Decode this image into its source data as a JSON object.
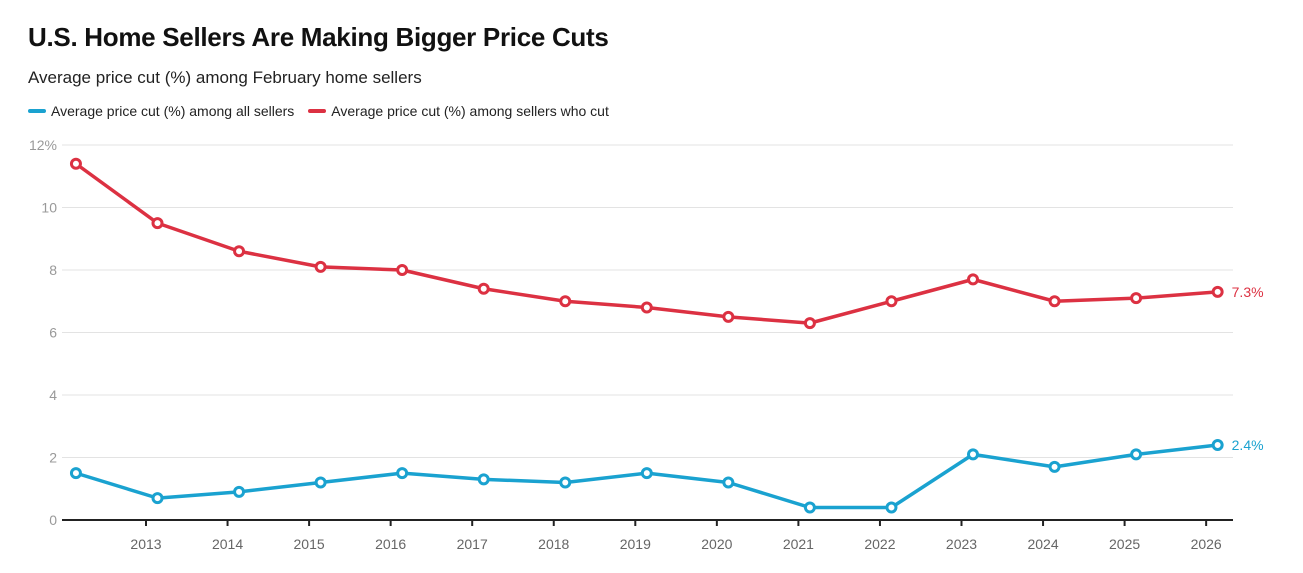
{
  "chart_data": {
    "type": "line",
    "title": "U.S. Home Sellers Are Making Bigger Price Cuts",
    "subtitle": "Average price cut (%) among February home sellers",
    "x": [
      2012,
      2013,
      2014,
      2015,
      2016,
      2017,
      2018,
      2019,
      2020,
      2021,
      2022,
      2023,
      2024,
      2025,
      2026
    ],
    "x_ticks": [
      "2013",
      "2014",
      "2015",
      "2016",
      "2017",
      "2018",
      "2019",
      "2020",
      "2021",
      "2022",
      "2023",
      "2024",
      "2025",
      "2026"
    ],
    "y_ticks": [
      "0",
      "2",
      "4",
      "6",
      "8",
      "10",
      "12%"
    ],
    "ylim": [
      0,
      12
    ],
    "grid": "horizontal",
    "legend_placement": "top-left",
    "series": [
      {
        "name": "Average price cut (%) among all sellers",
        "color": "#1aa2d0",
        "values": [
          1.5,
          0.7,
          0.9,
          1.2,
          1.5,
          1.3,
          1.2,
          1.5,
          1.2,
          0.4,
          0.4,
          2.1,
          1.7,
          2.1,
          2.4
        ],
        "end_label": "2.4%"
      },
      {
        "name": "Average price cut (%) among sellers who cut",
        "color": "#dc3142",
        "values": [
          11.4,
          9.5,
          8.6,
          8.1,
          8.0,
          7.4,
          7.0,
          6.8,
          6.5,
          6.3,
          7.0,
          7.7,
          7.0,
          7.1,
          7.3
        ],
        "end_label": "7.3%"
      }
    ]
  }
}
